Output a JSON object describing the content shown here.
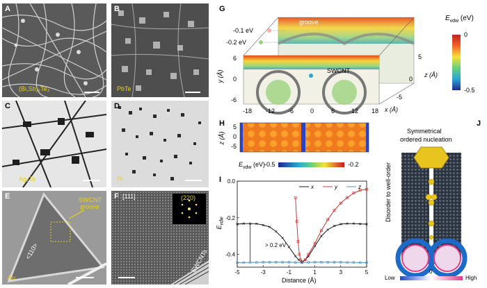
{
  "panels": {
    "A": {
      "letter": "A",
      "label": "(Bi,Sb)₂Te₃"
    },
    "B": {
      "letter": "B",
      "label": "PbTe"
    },
    "C": {
      "letter": "C",
      "label": "Ag₂Te"
    },
    "D": {
      "letter": "D",
      "label": "Pt"
    },
    "E": {
      "letter": "E",
      "label": "Au",
      "annot1": "SWCNT",
      "annot2": "groove",
      "direction": "<110>"
    },
    "F": {
      "letter": "F",
      "zone": "[111]",
      "spot": "(220)",
      "tag": "SWCNTs"
    },
    "G": {
      "letter": "G",
      "groove": "groove",
      "swcnt": "SWCNT",
      "e1": "-0.1 eV",
      "e2": "-0.2 eV",
      "yaxis": "y (Å)",
      "zaxis": "z (Å)",
      "xaxis": "x (Å)",
      "xticks": [
        "-18",
        "-12",
        "-6",
        "0",
        "6",
        "12",
        "18"
      ],
      "yticks": [
        "6",
        "0",
        "-6"
      ],
      "zticks": [
        "5",
        "0",
        "-5"
      ],
      "cbar_title": "E",
      "cbar_sub": "vdw",
      "cbar_unit": " (eV)",
      "cbar_max": "0",
      "cbar_min": "-0.5"
    },
    "H": {
      "letter": "H",
      "zlabel": "z (Å)",
      "zticks": [
        "5",
        "0",
        "-5"
      ],
      "cbar_label": "E",
      "cbar_sub": "vdw",
      "cbar_unit": " (eV)",
      "cbar_min": "-0.5",
      "cbar_max": "-0.2"
    },
    "I": {
      "letter": "I",
      "xlabel": "Distance (Å)",
      "ylabel": "E",
      "ysub": "vdw",
      "annot": "> 0.2 eV"
    },
    "J": {
      "letter": "J",
      "title1": "Symmetrical",
      "title2": "ordered nucleation",
      "side1": "Disorder",
      "side2": "to",
      "side3": "well-order",
      "low": "Low",
      "zero": "0",
      "high": "High"
    }
  },
  "chart_data": {
    "type": "line",
    "title": "",
    "xlabel": "Distance (Å)",
    "ylabel": "Evdw",
    "xlim": [
      -5,
      5
    ],
    "ylim": [
      -0.47,
      0.0
    ],
    "xticks": [
      -5,
      -3,
      -1,
      1,
      3,
      5
    ],
    "yticks": [
      -0.4,
      -0.2,
      0.0
    ],
    "legend_position": "top-right",
    "series": [
      {
        "name": "x",
        "color": "#000000",
        "marker": "x",
        "x": [
          -5,
          -4.5,
          -4,
          -3.5,
          -3,
          -2.5,
          -2,
          -1.5,
          -1,
          -0.5,
          -0.25,
          0,
          0.25,
          0.5,
          1,
          1.5,
          2,
          2.5,
          3,
          3.5,
          4,
          4.5,
          5
        ],
        "y": [
          -0.235,
          -0.232,
          -0.232,
          -0.233,
          -0.24,
          -0.25,
          -0.275,
          -0.31,
          -0.36,
          -0.41,
          -0.43,
          -0.445,
          -0.43,
          -0.41,
          -0.355,
          -0.3,
          -0.265,
          -0.245,
          -0.235,
          -0.232,
          -0.232,
          -0.234,
          -0.235
        ]
      },
      {
        "name": "y",
        "color": "#cc2222",
        "marker": "square",
        "x": [
          -0.5,
          -0.4,
          -0.3,
          -0.2,
          -0.1,
          0,
          0.25,
          0.5,
          1,
          1.5,
          2,
          2.5,
          3,
          3.5,
          4,
          4.5,
          5
        ],
        "y": [
          -0.09,
          -0.22,
          -0.33,
          -0.4,
          -0.43,
          -0.44,
          -0.43,
          -0.4,
          -0.34,
          -0.27,
          -0.21,
          -0.16,
          -0.12,
          -0.09,
          -0.065,
          -0.05,
          -0.045
        ]
      },
      {
        "name": "z",
        "color": "#3b86b8",
        "marker": "circle",
        "x": [
          -5,
          -4.5,
          -4,
          -3.5,
          -3,
          -2.5,
          -2,
          -1.5,
          -1,
          -0.5,
          0,
          0.5,
          1,
          1.5,
          2,
          2.5,
          3,
          3.5,
          4,
          4.5,
          5
        ],
        "y": [
          -0.445,
          -0.445,
          -0.444,
          -0.444,
          -0.443,
          -0.443,
          -0.443,
          -0.443,
          -0.443,
          -0.444,
          -0.444,
          -0.444,
          -0.443,
          -0.443,
          -0.443,
          -0.443,
          -0.443,
          -0.444,
          -0.444,
          -0.445,
          -0.445
        ]
      }
    ]
  }
}
